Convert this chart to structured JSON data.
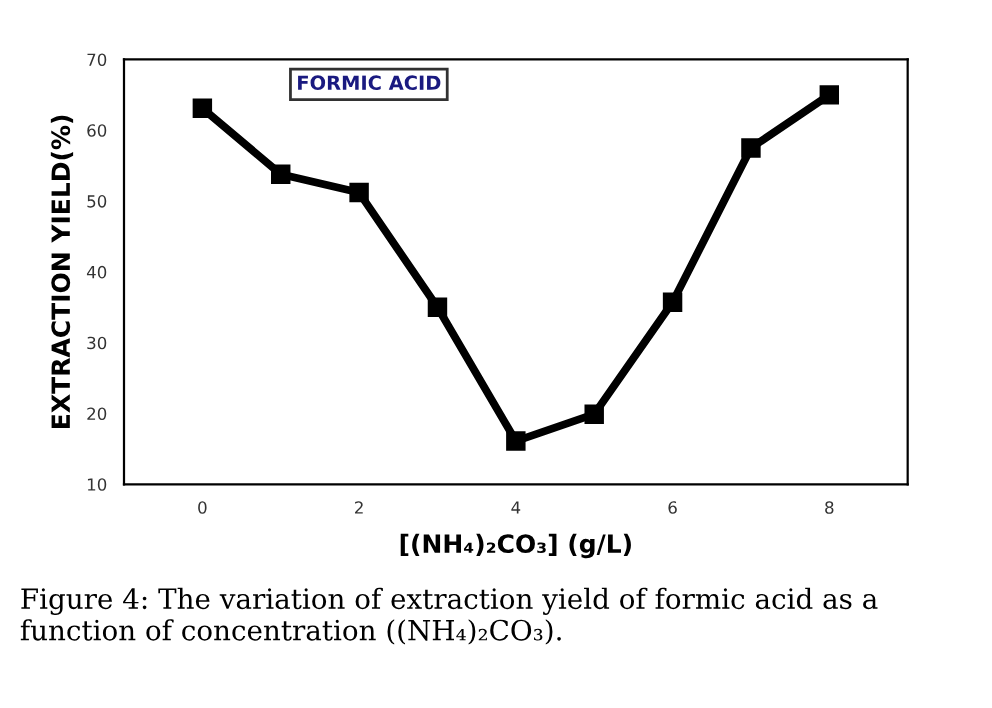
{
  "chart_data": {
    "type": "line",
    "xlabel": "[(NH₄)₂CO₃] (g/L)",
    "ylabel": "EXTRACTION YIELD(%)",
    "x": [
      0,
      1,
      2,
      3,
      4,
      5,
      6,
      7,
      8
    ],
    "series": [
      {
        "name": "FORMIC ACID",
        "color": "#000000",
        "values": [
          63.1,
          53.8,
          51.2,
          35.0,
          16.1,
          19.9,
          35.7,
          57.5,
          65.0
        ]
      }
    ],
    "xlim": [
      -1,
      9
    ],
    "xticks": [
      0,
      2,
      4,
      6,
      8
    ],
    "ylim": [
      10,
      70
    ],
    "yticks": [
      10,
      20,
      30,
      40,
      50,
      60,
      70
    ],
    "marker": "square",
    "line_style": "solid",
    "grid": false,
    "legend": "top left",
    "annotations": [
      "Figure 4: The variation of extraction yield of formic acid as a function of concentration ((NH₄)₂CO₃)."
    ]
  }
}
